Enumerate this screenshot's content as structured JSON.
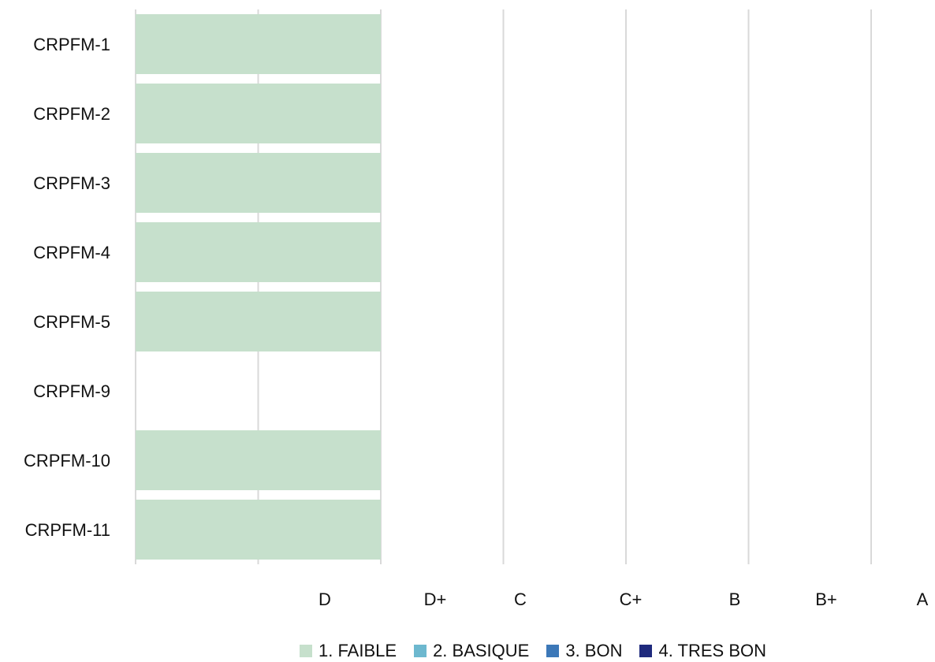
{
  "chart_data": {
    "type": "bar",
    "orientation": "horizontal",
    "stacked": true,
    "title": "",
    "xlabel": "",
    "ylabel": "",
    "categories": [
      "CRPFM-1",
      "CRPFM-2",
      "CRPFM-3",
      "CRPFM-4",
      "CRPFM-5",
      "CRPFM-9",
      "CRPFM-10",
      "CRPFM-11"
    ],
    "x_tick_labels": [
      "D",
      "D+",
      "C",
      "C+",
      "B",
      "B+",
      "A"
    ],
    "xlim": [
      0,
      6
    ],
    "grid": true,
    "legend_position": "bottom",
    "series": [
      {
        "name": "1. FAIBLE",
        "color": "#c6e0cc",
        "values": [
          2,
          2,
          2,
          2,
          2,
          0,
          2,
          2
        ]
      },
      {
        "name": "2. BASIQUE",
        "color": "#6db8cf",
        "values": [
          0,
          0,
          0,
          0,
          0,
          0,
          0,
          0
        ]
      },
      {
        "name": "3. BON",
        "color": "#3c78b8",
        "values": [
          0,
          0,
          0,
          0,
          0,
          0,
          0,
          0
        ]
      },
      {
        "name": "4. TRES BON",
        "color": "#1f2a7d",
        "values": [
          0,
          0,
          0,
          0,
          0,
          0,
          0,
          0
        ]
      }
    ]
  }
}
